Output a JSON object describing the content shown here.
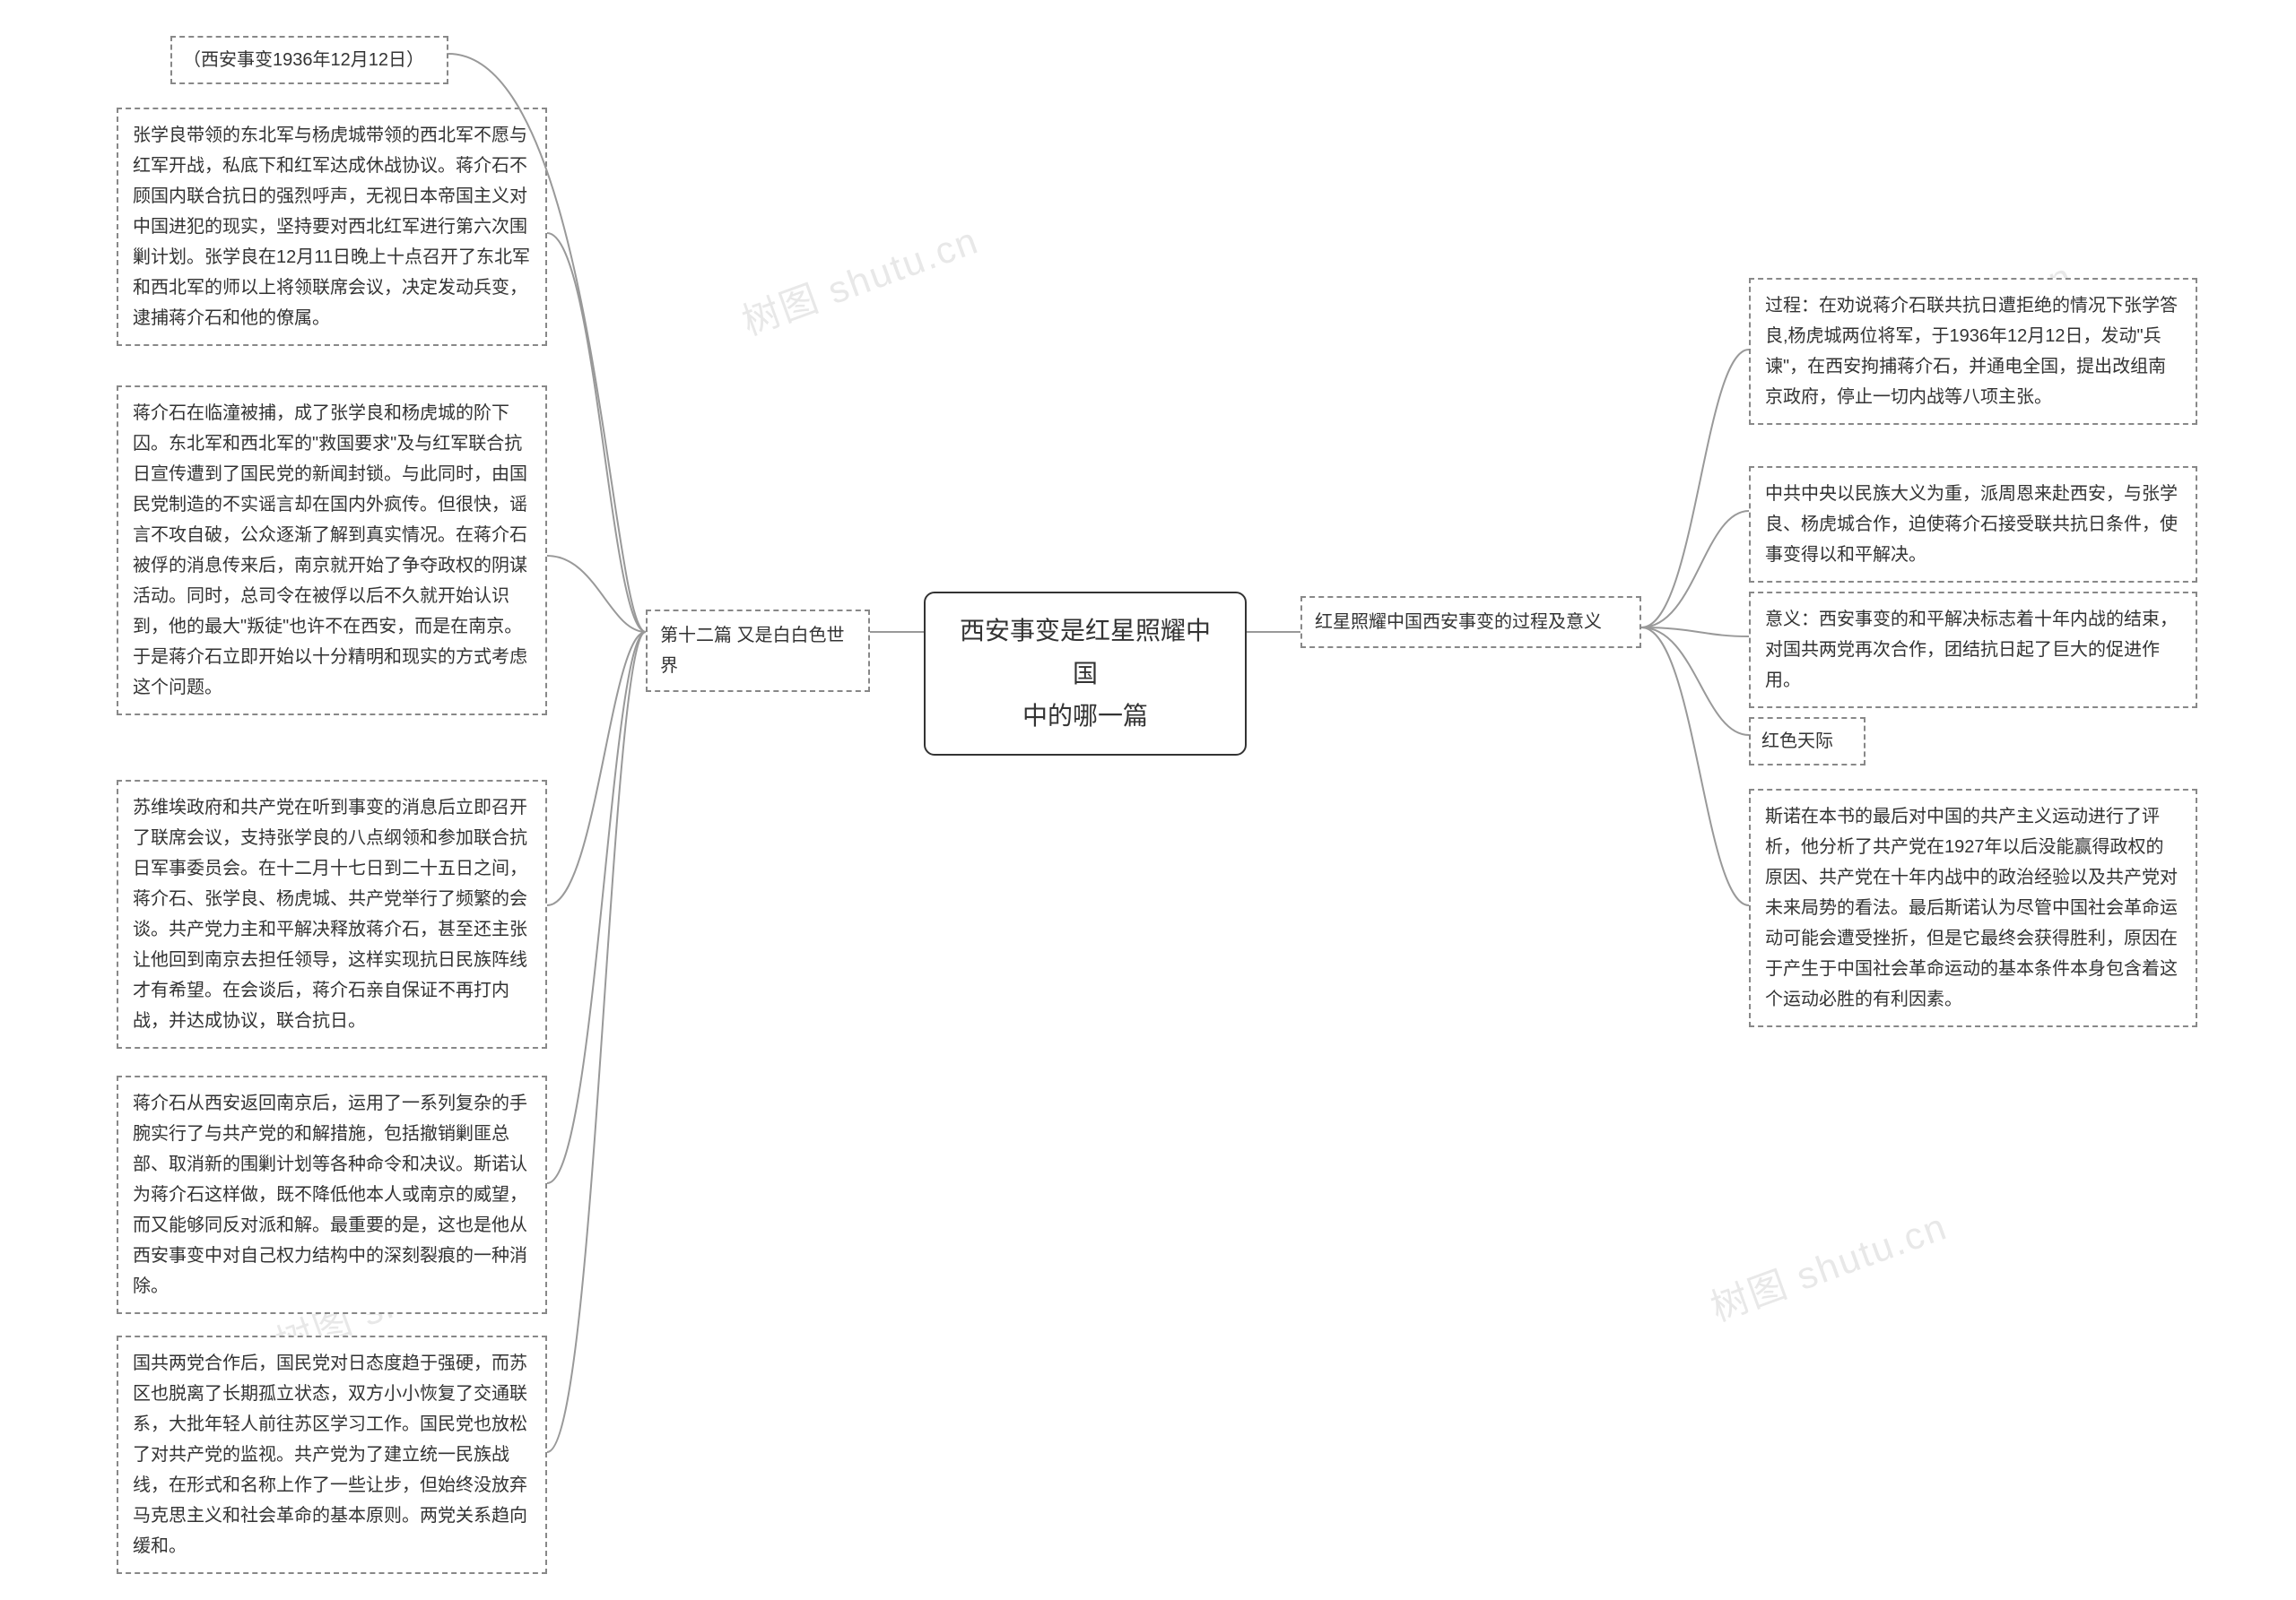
{
  "center": {
    "title": "西安事变是红星照耀中国\n中的哪一篇"
  },
  "left": {
    "branch_label": "第十二篇 又是白白色世界",
    "nodes": [
      "（西安事变1936年12月12日）",
      "张学良带领的东北军与杨虎城带领的西北军不愿与红军开战，私底下和红军达成休战协议。蒋介石不顾国内联合抗日的强烈呼声，无视日本帝国主义对中国进犯的现实，坚持要对西北红军进行第六次围剿计划。张学良在12月11日晚上十点召开了东北军和西北军的师以上将领联席会议，决定发动兵变，逮捕蒋介石和他的僚属。",
      "蒋介石在临潼被捕，成了张学良和杨虎城的阶下囚。东北军和西北军的\"救国要求\"及与红军联合抗日宣传遭到了国民党的新闻封锁。与此同时，由国民党制造的不实谣言却在国内外疯传。但很快，谣言不攻自破，公众逐渐了解到真实情况。在蒋介石被俘的消息传来后，南京就开始了争夺政权的阴谋活动。同时，总司令在被俘以后不久就开始认识到，他的最大\"叛徒\"也许不在西安，而是在南京。于是蒋介石立即开始以十分精明和现实的方式考虑这个问题。",
      "苏维埃政府和共产党在听到事变的消息后立即召开了联席会议，支持张学良的八点纲领和参加联合抗日军事委员会。在十二月十七日到二十五日之间，蒋介石、张学良、杨虎城、共产党举行了频繁的会谈。共产党力主和平解决释放蒋介石，甚至还主张让他回到南京去担任领导，这样实现抗日民族阵线才有希望。在会谈后，蒋介石亲自保证不再打内战，并达成协议，联合抗日。",
      "蒋介石从西安返回南京后，运用了一系列复杂的手腕实行了与共产党的和解措施，包括撤销剿匪总部、取消新的围剿计划等各种命令和决议。斯诺认为蒋介石这样做，既不降低他本人或南京的威望，而又能够同反对派和解。最重要的是，这也是他从西安事变中对自己权力结构中的深刻裂痕的一种消除。",
      "国共两党合作后，国民党对日态度趋于强硬，而苏区也脱离了长期孤立状态，双方小小恢复了交通联系，大批年轻人前往苏区学习工作。国民党也放松了对共产党的监视。共产党为了建立统一民族战线，在形式和名称上作了一些让步，但始终没放弃马克思主义和社会革命的基本原则。两党关系趋向缓和。"
    ]
  },
  "right": {
    "branch_label": "红星照耀中国西安事变的过程及意义",
    "nodes": [
      "过程：在劝说蒋介石联共抗日遭拒绝的情况下张学答良,杨虎城两位将军，于1936年12月12日，发动\"兵谏\"，在西安拘捕蒋介石，并通电全国，提出改组南京政府，停止一切内战等八项主张。",
      "中共中央以民族大义为重，派周恩来赴西安，与张学良、杨虎城合作，迫使蒋介石接受联共抗日条件，使事变得以和平解决。",
      "意义：西安事变的和平解决标志着十年内战的结束，对国共两党再次合作，团结抗日起了巨大的促进作用。",
      "红色天际",
      "斯诺在本书的最后对中国的共产主义运动进行了评析，他分析了共产党在1927年以后没能赢得政权的原因、共产党在十年内战中的政治经验以及共产党对未来局势的看法。最后斯诺认为尽管中国社会革命运动可能会遭受挫折，但是它最终会获得胜利，原因在于产生于中国社会革命运动的基本条件本身包含着这个运动必胜的有利因素。"
    ]
  },
  "watermarks": [
    "树图 shutu.cn",
    "树图 shutu.cn",
    "树图 shutu.cn",
    "树图 shutu.cn"
  ],
  "style": {
    "node_border_color": "#888888",
    "node_border_style": "dashed",
    "center_border_style": "solid",
    "background": "#ffffff",
    "text_color": "#333333",
    "watermark_color": "#e8e8e8",
    "connector_color": "#999999",
    "font_size_body": 20,
    "font_size_center": 28,
    "line_height": 1.7
  }
}
